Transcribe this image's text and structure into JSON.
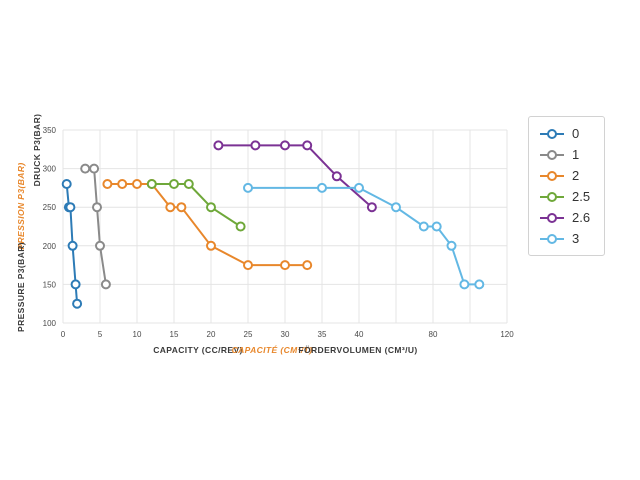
{
  "chart_data": {
    "type": "line",
    "title": "",
    "x_axis": {
      "titles": [
        {
          "text": "CAPACITY (CC/REV)",
          "color": "#3a3a3a",
          "style": "normal"
        },
        {
          "text": "CAPACITÉ (CM³/T)",
          "color": "#e8872b",
          "style": "italic"
        },
        {
          "text": "FÖRDERVOLUMEN (CM³/U)",
          "color": "#3a3a3a",
          "style": "normal"
        }
      ],
      "ticks": [
        {
          "v": 0,
          "label": "0"
        },
        {
          "v": 5,
          "label": "5"
        },
        {
          "v": 10,
          "label": "10"
        },
        {
          "v": 15,
          "label": "15"
        },
        {
          "v": 20,
          "label": "20"
        },
        {
          "v": 25,
          "label": "25"
        },
        {
          "v": 30,
          "label": "30"
        },
        {
          "v": 35,
          "label": "35"
        },
        {
          "v": 40,
          "label": "40"
        },
        {
          "v": 60,
          "label": ""
        },
        {
          "v": 80,
          "label": "80"
        },
        {
          "v": 100,
          "label": ""
        },
        {
          "v": 120,
          "label": "120"
        }
      ],
      "range": [
        0,
        120
      ],
      "scale_note": "5 units per division up to 40, then 20 units per division to 120"
    },
    "y_axis": {
      "titles": [
        {
          "text": "DRUCK P3(BAR)",
          "color": "#3a3a3a",
          "style": "normal"
        },
        {
          "text": "PRESSION P3(BAR)",
          "color": "#e8872b",
          "style": "italic"
        },
        {
          "text": "PRESSURE P3(BAR)",
          "color": "#3a3a3a",
          "style": "normal"
        }
      ],
      "ticks": [
        100,
        150,
        200,
        250,
        300,
        350
      ],
      "range": [
        100,
        350
      ]
    },
    "grid": {
      "show": true,
      "color": "#e4e4e4"
    },
    "legend": {
      "position": "right",
      "items": [
        "0",
        "1",
        "2",
        "2.5",
        "2.6",
        "3"
      ]
    },
    "series": [
      {
        "name": "0",
        "color": "#2d7bb6",
        "points": [
          [
            0.5,
            280
          ],
          [
            0.8,
            250
          ],
          [
            1.0,
            250
          ],
          [
            1.3,
            200
          ],
          [
            1.7,
            150
          ],
          [
            1.9,
            125
          ]
        ]
      },
      {
        "name": "1",
        "color": "#8a8a8a",
        "points": [
          [
            3,
            300
          ],
          [
            4.2,
            300
          ],
          [
            4.6,
            250
          ],
          [
            5,
            200
          ],
          [
            5.8,
            150
          ]
        ]
      },
      {
        "name": "2",
        "color": "#e8872b",
        "points": [
          [
            6,
            280
          ],
          [
            8,
            280
          ],
          [
            10,
            280
          ],
          [
            12,
            280
          ],
          [
            14.5,
            250
          ],
          [
            16,
            250
          ],
          [
            20,
            200
          ],
          [
            25,
            175
          ],
          [
            30,
            175
          ],
          [
            33,
            175
          ]
        ]
      },
      {
        "name": "2.5",
        "color": "#6fa83a",
        "points": [
          [
            12,
            280
          ],
          [
            15,
            280
          ],
          [
            17,
            280
          ],
          [
            20,
            250
          ],
          [
            24,
            225
          ]
        ]
      },
      {
        "name": "2.6",
        "color": "#7b3294",
        "points": [
          [
            21,
            330
          ],
          [
            26,
            330
          ],
          [
            30,
            330
          ],
          [
            33,
            330
          ],
          [
            37,
            290
          ],
          [
            47,
            250
          ]
        ]
      },
      {
        "name": "3",
        "color": "#63b8e4",
        "points": [
          [
            25,
            275
          ],
          [
            35,
            275
          ],
          [
            40,
            275
          ],
          [
            60,
            250
          ],
          [
            75,
            225
          ],
          [
            82,
            225
          ],
          [
            90,
            200
          ],
          [
            97,
            150
          ],
          [
            105,
            150
          ]
        ]
      }
    ]
  }
}
